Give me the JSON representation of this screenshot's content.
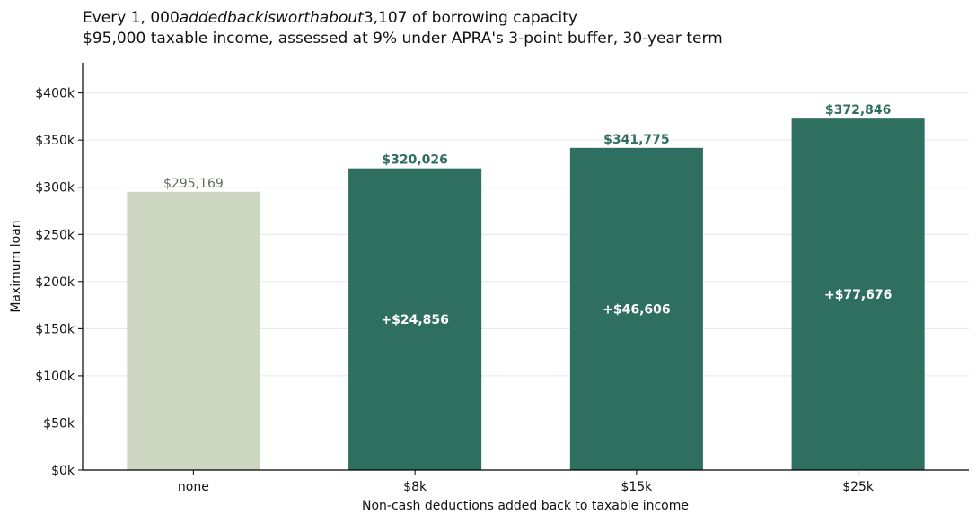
{
  "title_parts": [
    "Every 1, 000",
    "addedbackisworthabout",
    "3,107 of borrowing capacity"
  ],
  "subtitle": "$95,000 taxable income, assessed at 9% under APRA's 3-point buffer, 30-year term",
  "chart_data": {
    "type": "bar",
    "categories": [
      "none",
      "$8k",
      "$15k",
      "$25k"
    ],
    "values": [
      295169,
      320026,
      341775,
      372846
    ],
    "value_labels": [
      "$295,169",
      "$320,026",
      "$341,775",
      "$372,846"
    ],
    "increment_labels": [
      "",
      "+$24,856",
      "+$46,606",
      "+$77,676"
    ],
    "xlabel": "Non-cash deductions added back to taxable income",
    "ylabel": "Maximum loan",
    "ylim": [
      0,
      432000
    ],
    "yticks": [
      0,
      50000,
      100000,
      150000,
      200000,
      250000,
      300000,
      350000,
      400000
    ],
    "ytick_labels": [
      "$0k",
      "$50k",
      "$100k",
      "$150k",
      "$200k",
      "$250k",
      "$300k",
      "$350k",
      "$400k"
    ],
    "grid": "horizontal",
    "colors": {
      "baseline_bar": "#cdd6c1",
      "added_bar": "#2f6f5f",
      "baseline_label": "#5d7059",
      "added_label": "#2f6f5f",
      "increment_label": "#ffffff",
      "grid": "#e6e6e6",
      "axis": "#000000"
    }
  }
}
